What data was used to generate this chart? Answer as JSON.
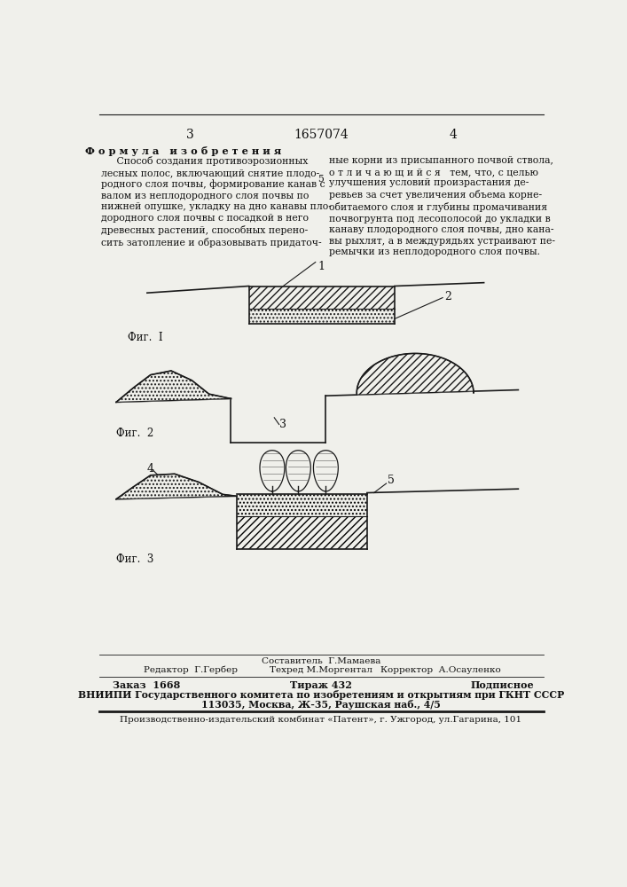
{
  "page_width": 7.07,
  "page_height": 10.0,
  "bg_color": "#f0f0eb",
  "header_numbers": [
    "3",
    "1657074",
    "4"
  ],
  "formula_title": "Ф о р м у л а   и з о б р е т е н и я",
  "col1_text": "     Способ создания противоэрозионных\nлесных полос, включающий снятие плодо-\nродного слоя почвы, формирование канав с\nвалом из неплодородного слоя почвы по\nнижней опушке, укладку на дно канавы пло-\nдородного слоя почвы с посадкой в него\nдревесных растений, способных перено-\nсить затопление и образовывать придаточ-",
  "col2_text": "ные корни из присыпанного почвой ствола,\nо т л и ч а ю щ и й с я   тем, что, с целью\nулучшения условий произрастания де-\nревьев за счет увеличения объема корне-\nобитаемого слоя и глубины промачивания\nпочвогрунта под лесополосой до укладки в\nканаву плодородного слоя почвы, дно кана-\nвы рыхлят, а в междурядьях устраивают пе-\nремычки из неплодородного слоя почвы.",
  "col_number": "5",
  "fig1_label": "Фиг.  I",
  "fig2_label": "Фиг.  2",
  "fig3_label": "Фиг.  3",
  "footer_line1_left": "Редактор  Г.Гербер",
  "footer_line1_mid_top": "Составитель  Г.Мамаева",
  "footer_line1_mid_bot": "Техред М.Моргентал",
  "footer_line1_right": "Корректор  А.Осауленко",
  "footer_line2a": "Заказ  1668",
  "footer_line2b": "Тираж 432",
  "footer_line2c": "Подписное",
  "footer_line3": "ВНИИПИ Государственного комитета по изобретениям и открытиям при ГКНТ СССР",
  "footer_line4": "113035, Москва, Ж-35, Раушская наб., 4/5",
  "footer_line5": "Производственно-издательский комбинат «Патент», г. Ужгород, ул.Гагарина, 101",
  "line_color": "#1a1a1a",
  "text_color": "#111111"
}
